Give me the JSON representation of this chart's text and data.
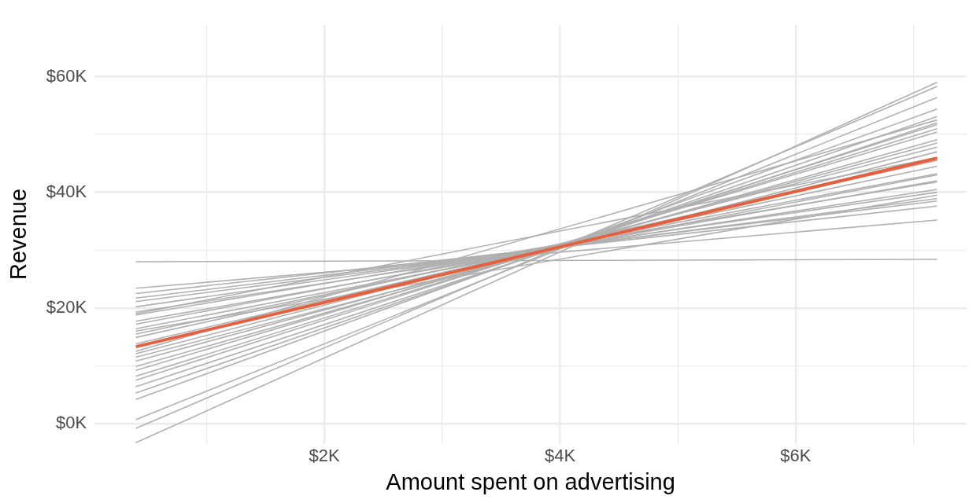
{
  "chart_data": {
    "type": "line",
    "xlabel": "Amount spent on advertising",
    "ylabel": "Revenue",
    "x": [
      0.4,
      7.2
    ],
    "xlim": [
      0.05,
      7.45
    ],
    "xticks": [
      {
        "value": 1,
        "label": null
      },
      {
        "value": 2,
        "label": "$2K"
      },
      {
        "value": 3,
        "label": null
      },
      {
        "value": 4,
        "label": "$4K"
      },
      {
        "value": 5,
        "label": null
      },
      {
        "value": 6,
        "label": "$6K"
      },
      {
        "value": 7,
        "label": null
      }
    ],
    "ylim": [
      -3.5,
      69
    ],
    "yticks": [
      {
        "value": 0,
        "label": "$0K"
      },
      {
        "value": 10,
        "label": null
      },
      {
        "value": 20,
        "label": "$20K"
      },
      {
        "value": 30,
        "label": null
      },
      {
        "value": 40,
        "label": "$40K"
      },
      {
        "value": 50,
        "label": null
      },
      {
        "value": 60,
        "label": "$60K"
      }
    ],
    "grid": true,
    "legend": false,
    "marker": "none",
    "line_style": "solid",
    "series": [
      {
        "color": "#b0b0b0",
        "values": [
          28.0,
          28.4
        ]
      },
      {
        "color": "#b0b0b0",
        "values": [
          23.4,
          35.2
        ]
      },
      {
        "color": "#b0b0b0",
        "values": [
          22.5,
          37.6
        ]
      },
      {
        "color": "#b0b0b0",
        "values": [
          21.7,
          38.5
        ]
      },
      {
        "color": "#b0b0b0",
        "values": [
          21.1,
          38.9
        ]
      },
      {
        "color": "#b0b0b0",
        "values": [
          20.2,
          40.0
        ]
      },
      {
        "color": "#b0b0b0",
        "values": [
          19.3,
          40.5
        ]
      },
      {
        "color": "#b0b0b0",
        "values": [
          19.0,
          46.0
        ]
      },
      {
        "color": "#b0b0b0",
        "values": [
          18.8,
          41.8
        ]
      },
      {
        "color": "#b0b0b0",
        "values": [
          17.7,
          42.0
        ]
      },
      {
        "color": "#b0b0b0",
        "values": [
          17.2,
          43.2
        ]
      },
      {
        "color": "#b0b0b0",
        "values": [
          16.4,
          43.0
        ]
      },
      {
        "color": "#b0b0b0",
        "values": [
          16.0,
          39.5
        ]
      },
      {
        "color": "#b0b0b0",
        "values": [
          15.5,
          44.5
        ]
      },
      {
        "color": "#b0b0b0",
        "values": [
          14.9,
          45.5
        ]
      },
      {
        "color": "#b0b0b0",
        "values": [
          13.8,
          46.0
        ]
      },
      {
        "color": "#b0b0b0",
        "values": [
          12.5,
          52.5
        ]
      },
      {
        "color": "#b0b0b0",
        "values": [
          12.1,
          47.8
        ]
      },
      {
        "color": "#b0b0b0",
        "values": [
          11.5,
          47.0
        ]
      },
      {
        "color": "#b0b0b0",
        "values": [
          10.8,
          48.5
        ]
      },
      {
        "color": "#b0b0b0",
        "values": [
          9.9,
          49.1
        ]
      },
      {
        "color": "#b0b0b0",
        "values": [
          9.2,
          50.4
        ]
      },
      {
        "color": "#b0b0b0",
        "values": [
          8.2,
          51.0
        ]
      },
      {
        "color": "#b0b0b0",
        "values": [
          7.5,
          51.7
        ]
      },
      {
        "color": "#b0b0b0",
        "values": [
          6.4,
          52.0
        ]
      },
      {
        "color": "#b0b0b0",
        "values": [
          5.3,
          53.1
        ]
      },
      {
        "color": "#b0b0b0",
        "values": [
          4.2,
          54.4
        ]
      },
      {
        "color": "#b0b0b0",
        "values": [
          0.7,
          56.4
        ]
      },
      {
        "color": "#b0b0b0",
        "values": [
          -0.8,
          58.3
        ]
      },
      {
        "color": "#b0b0b0",
        "values": [
          -3.3,
          59.0
        ]
      },
      {
        "color": "#e4603e",
        "values": [
          13.3,
          45.9
        ]
      }
    ]
  }
}
